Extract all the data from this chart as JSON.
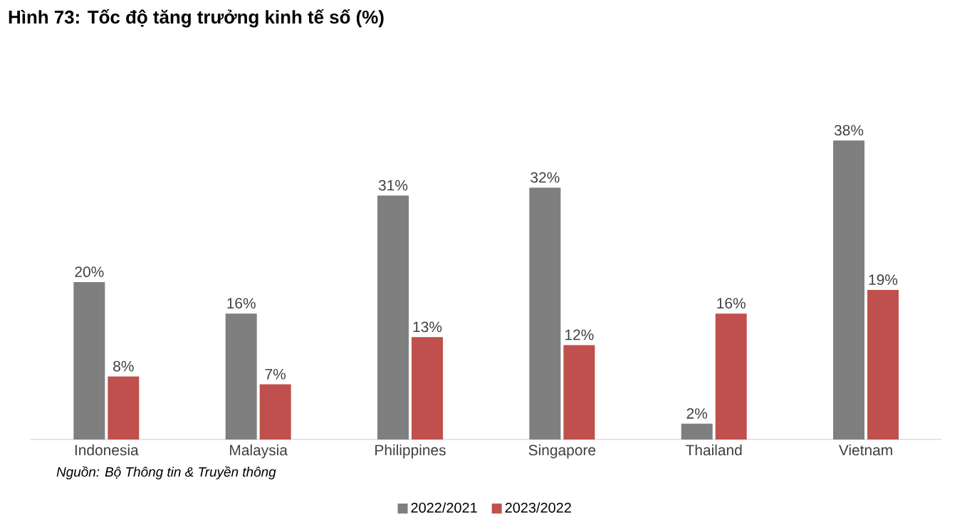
{
  "chart_data": {
    "type": "bar",
    "title": "Hình 73: Tốc độ tăng trưởng kinh tế số (%)",
    "categories": [
      "Indonesia",
      "Malaysia",
      "Philippines",
      "Singapore",
      "Thailand",
      "Vietnam"
    ],
    "series": [
      {
        "name": "2022/2021",
        "color": "#7f7f7f",
        "values": [
          20,
          16,
          31,
          32,
          2,
          38
        ],
        "value_labels": [
          "20%",
          "16%",
          "31%",
          "32%",
          "2%",
          "38%"
        ]
      },
      {
        "name": "2023/2022",
        "color": "#c0504d",
        "values": [
          8,
          7,
          13,
          12,
          16,
          19
        ],
        "value_labels": [
          "8%",
          "7%",
          "13%",
          "12%",
          "16%",
          "19%"
        ]
      }
    ],
    "legend": "bottom",
    "annotations": [
      "Nguồn: Bộ Thông tin & Truyền thông"
    ]
  }
}
